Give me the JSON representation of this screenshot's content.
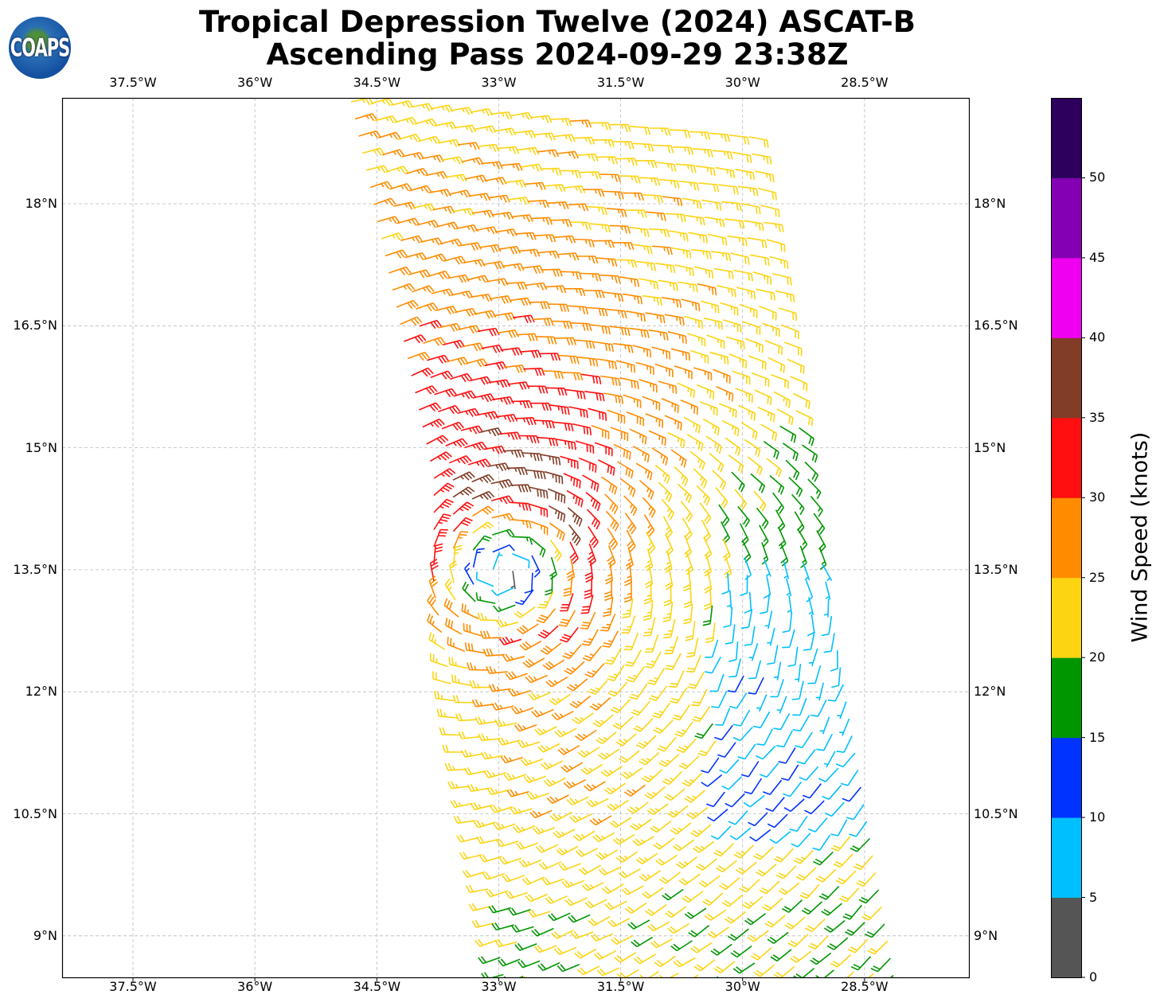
{
  "title": {
    "line1": "Tropical Depression Twelve (2024) ASCAT-B",
    "line2": "Ascending Pass 2024-09-29 23:38Z"
  },
  "logo": {
    "text": "COAPS"
  },
  "lon_ticks": [
    "37.5°W",
    "36°W",
    "34.5°W",
    "33°W",
    "31.5°W",
    "30°W",
    "28.5°W"
  ],
  "lat_ticks": [
    "18°N",
    "16.5°N",
    "15°N",
    "13.5°N",
    "12°N",
    "10.5°N",
    "9°N"
  ],
  "colorbar": {
    "label": "Wind Speed (knots)",
    "ticks": [
      "0",
      "5",
      "10",
      "15",
      "20",
      "25",
      "30",
      "35",
      "40",
      "45",
      "50"
    ],
    "bins": [
      {
        "min": 0,
        "max": 5,
        "color": "#555555"
      },
      {
        "min": 5,
        "max": 10,
        "color": "#00bfff"
      },
      {
        "min": 10,
        "max": 15,
        "color": "#0033ff"
      },
      {
        "min": 15,
        "max": 20,
        "color": "#009600"
      },
      {
        "min": 20,
        "max": 25,
        "color": "#fcd412"
      },
      {
        "min": 25,
        "max": 30,
        "color": "#ff8c00"
      },
      {
        "min": 30,
        "max": 35,
        "color": "#ff0f0f"
      },
      {
        "min": 35,
        "max": 40,
        "color": "#813d27"
      },
      {
        "min": 40,
        "max": 45,
        "color": "#f000f0"
      },
      {
        "min": 45,
        "max": 50,
        "color": "#8400b4"
      },
      {
        "min": 50,
        "max": 55,
        "color": "#2c005c"
      }
    ]
  },
  "storm": {
    "center_lon_w": 32.9,
    "center_lat_n": 13.6,
    "max_wind_kt": 32
  }
}
